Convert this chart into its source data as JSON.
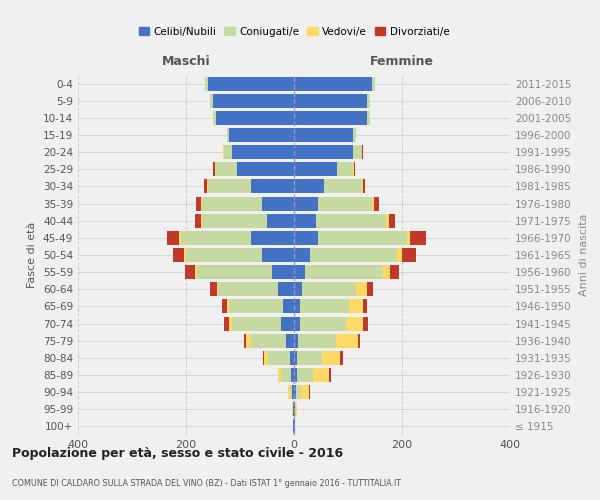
{
  "age_groups": [
    "100+",
    "95-99",
    "90-94",
    "85-89",
    "80-84",
    "75-79",
    "70-74",
    "65-69",
    "60-64",
    "55-59",
    "50-54",
    "45-49",
    "40-44",
    "35-39",
    "30-34",
    "25-29",
    "20-24",
    "15-19",
    "10-14",
    "5-9",
    "0-4"
  ],
  "birth_years": [
    "≤ 1915",
    "1916-1920",
    "1921-1925",
    "1926-1930",
    "1931-1935",
    "1936-1940",
    "1941-1945",
    "1946-1950",
    "1951-1955",
    "1956-1960",
    "1961-1965",
    "1966-1970",
    "1971-1975",
    "1976-1980",
    "1981-1985",
    "1986-1990",
    "1991-1995",
    "1996-2000",
    "2001-2005",
    "2006-2010",
    "2011-2015"
  ],
  "males": {
    "celibi": [
      2,
      1,
      3,
      5,
      8,
      15,
      25,
      20,
      30,
      40,
      60,
      80,
      50,
      60,
      80,
      105,
      115,
      120,
      145,
      150,
      160
    ],
    "coniugati": [
      0,
      1,
      5,
      20,
      40,
      65,
      90,
      100,
      110,
      140,
      140,
      130,
      120,
      110,
      80,
      40,
      15,
      5,
      5,
      5,
      5
    ],
    "vedovi": [
      0,
      1,
      4,
      5,
      8,
      8,
      5,
      5,
      3,
      3,
      4,
      3,
      2,
      2,
      2,
      2,
      1,
      0,
      0,
      0,
      0
    ],
    "divorziati": [
      0,
      0,
      0,
      0,
      2,
      4,
      10,
      8,
      12,
      18,
      20,
      22,
      12,
      10,
      5,
      3,
      1,
      0,
      0,
      0,
      0
    ]
  },
  "females": {
    "nubili": [
      2,
      1,
      3,
      5,
      6,
      8,
      12,
      12,
      15,
      20,
      30,
      45,
      40,
      45,
      55,
      80,
      110,
      110,
      135,
      135,
      145
    ],
    "coniugate": [
      0,
      2,
      10,
      30,
      45,
      70,
      85,
      90,
      100,
      145,
      160,
      165,
      130,
      100,
      70,
      30,
      15,
      5,
      5,
      5,
      5
    ],
    "vedove": [
      0,
      3,
      15,
      30,
      35,
      40,
      30,
      25,
      20,
      12,
      10,
      5,
      5,
      4,
      2,
      1,
      1,
      0,
      0,
      0,
      0
    ],
    "divorziate": [
      0,
      0,
      2,
      4,
      4,
      5,
      10,
      8,
      12,
      18,
      25,
      30,
      12,
      8,
      5,
      2,
      1,
      0,
      0,
      0,
      0
    ]
  },
  "colors": {
    "celibi": "#4472c4",
    "coniugati": "#c5d9a0",
    "vedovi": "#ffd966",
    "divorziati": "#c0392b"
  },
  "xlim": 400,
  "title": "Popolazione per età, sesso e stato civile - 2016",
  "subtitle": "COMUNE DI CALDARO SULLA STRADA DEL VINO (BZ) - Dati ISTAT 1° gennaio 2016 - TUTTITALIA.IT",
  "ylabel_left": "Fasce di età",
  "ylabel_right": "Anni di nascita",
  "xlabel_left": "Maschi",
  "xlabel_right": "Femmine",
  "legend_labels": [
    "Celibi/Nubili",
    "Coniugati/e",
    "Vedovi/e",
    "Divorziati/e"
  ],
  "background_color": "#f0f0f0"
}
